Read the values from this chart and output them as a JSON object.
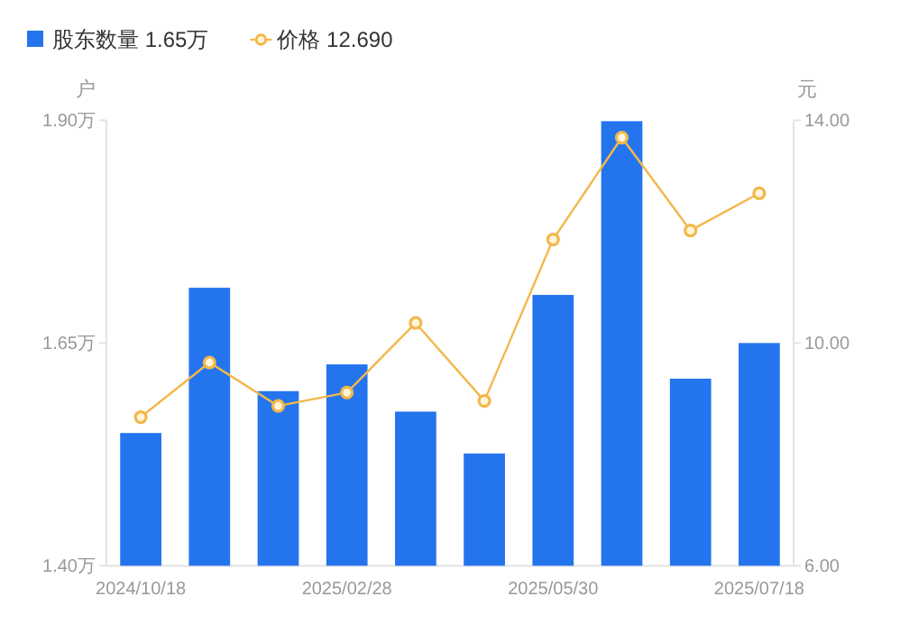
{
  "chart_data": {
    "type": "bar",
    "categories": [
      "2024/10/18",
      null,
      null,
      "2025/02/28",
      null,
      null,
      "2025/05/30",
      null,
      null,
      "2025/07/18"
    ],
    "ylabel": "户",
    "y2label": "元",
    "ylim": [
      1.4,
      1.9
    ],
    "yticks": [
      {
        "value": 1.4,
        "label": "1.40万"
      },
      {
        "value": 1.65,
        "label": "1.65万"
      },
      {
        "value": 1.9,
        "label": "1.90万"
      }
    ],
    "y2lim": [
      6,
      14
    ],
    "y2ticks": [
      {
        "value": 6,
        "label": "6.00"
      },
      {
        "value": 10,
        "label": "10.00"
      },
      {
        "value": 14,
        "label": "14.00"
      }
    ],
    "legend": "top left",
    "grid": false,
    "series": [
      {
        "name": "股东数量 1.65万",
        "color": "#2474ee",
        "values": [
          1.549,
          1.712,
          1.596,
          1.626,
          1.573,
          1.526,
          1.704,
          1.899,
          1.61,
          1.65
        ]
      },
      {
        "name": "价格 12.690",
        "type": "line",
        "axis": "y2",
        "marker": "circle",
        "color": "#f2b84b",
        "values": [
          8.67,
          9.65,
          8.87,
          9.11,
          10.36,
          8.96,
          11.86,
          13.69,
          12.02,
          12.69
        ]
      }
    ]
  }
}
